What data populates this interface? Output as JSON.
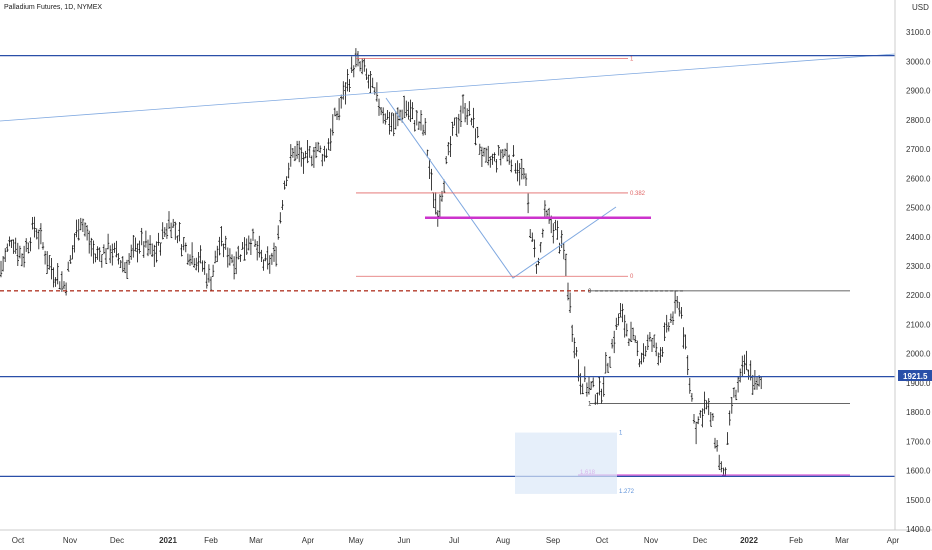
{
  "title": "Palladium Futures, 1D, NYMEX",
  "currency": "USD",
  "last_price": "1921.5",
  "colors": {
    "bars": "#111111",
    "horizontal_line": "#2a4fa8",
    "support_dashed": "#b33a2a",
    "fib_red": "#e06666",
    "fib_magenta": "#cc33cc",
    "trend_line": "#7fa8e0",
    "box_fill": "#dce8f8"
  },
  "chart_data": {
    "type": "ohlc",
    "title": "Palladium Futures, 1D, NYMEX",
    "ylabel": "USD",
    "ylim": [
      1400,
      3200
    ],
    "y_ticks": [
      "1400.0",
      "1500.0",
      "1600.0",
      "1700.0",
      "1800.0",
      "1900.0",
      "2000.0",
      "2100.0",
      "2200.0",
      "2300.0",
      "2400.0",
      "2500.0",
      "2600.0",
      "2700.0",
      "2800.0",
      "2900.0",
      "3000.0",
      "3100.0",
      "3200.0"
    ],
    "x_ticks": [
      {
        "label": "Oct",
        "year": false
      },
      {
        "label": "Nov",
        "year": false
      },
      {
        "label": "Dec",
        "year": false
      },
      {
        "label": "2021",
        "year": true
      },
      {
        "label": "Feb",
        "year": false
      },
      {
        "label": "Mar",
        "year": false
      },
      {
        "label": "Apr",
        "year": false
      },
      {
        "label": "May",
        "year": false
      },
      {
        "label": "Jun",
        "year": false
      },
      {
        "label": "Jul",
        "year": false
      },
      {
        "label": "Aug",
        "year": false
      },
      {
        "label": "Sep",
        "year": false
      },
      {
        "label": "Oct",
        "year": false
      },
      {
        "label": "Nov",
        "year": false
      },
      {
        "label": "Dec",
        "year": false
      },
      {
        "label": "2022",
        "year": true
      },
      {
        "label": "Feb",
        "year": false
      },
      {
        "label": "Mar",
        "year": false
      },
      {
        "label": "Apr",
        "year": false
      }
    ],
    "price_path": [
      [
        0,
        2280
      ],
      [
        12,
        2400
      ],
      [
        22,
        2330
      ],
      [
        35,
        2440
      ],
      [
        50,
        2300
      ],
      [
        65,
        2230
      ],
      [
        80,
        2470
      ],
      [
        95,
        2330
      ],
      [
        110,
        2360
      ],
      [
        125,
        2300
      ],
      [
        140,
        2380
      ],
      [
        155,
        2340
      ],
      [
        170,
        2460
      ],
      [
        185,
        2360
      ],
      [
        200,
        2320
      ],
      [
        210,
        2250
      ],
      [
        220,
        2380
      ],
      [
        235,
        2320
      ],
      [
        250,
        2400
      ],
      [
        265,
        2300
      ],
      [
        275,
        2330
      ],
      [
        285,
        2600
      ],
      [
        295,
        2700
      ],
      [
        305,
        2650
      ],
      [
        315,
        2700
      ],
      [
        325,
        2680
      ],
      [
        335,
        2800
      ],
      [
        345,
        2900
      ],
      [
        355,
        3000
      ],
      [
        365,
        2960
      ],
      [
        375,
        2880
      ],
      [
        385,
        2820
      ],
      [
        395,
        2780
      ],
      [
        405,
        2850
      ],
      [
        415,
        2800
      ],
      [
        425,
        2760
      ],
      [
        432,
        2560
      ],
      [
        438,
        2490
      ],
      [
        445,
        2620
      ],
      [
        455,
        2780
      ],
      [
        465,
        2850
      ],
      [
        475,
        2770
      ],
      [
        485,
        2650
      ],
      [
        495,
        2660
      ],
      [
        505,
        2690
      ],
      [
        515,
        2660
      ],
      [
        525,
        2600
      ],
      [
        532,
        2380
      ],
      [
        538,
        2290
      ],
      [
        545,
        2470
      ],
      [
        555,
        2430
      ],
      [
        565,
        2330
      ],
      [
        572,
        2100
      ],
      [
        580,
        1920
      ],
      [
        590,
        1880
      ],
      [
        600,
        1860
      ],
      [
        610,
        2000
      ],
      [
        620,
        2140
      ],
      [
        630,
        2060
      ],
      [
        640,
        1990
      ],
      [
        650,
        2040
      ],
      [
        660,
        2000
      ],
      [
        670,
        2110
      ],
      [
        680,
        2180
      ],
      [
        688,
        1940
      ],
      [
        696,
        1750
      ],
      [
        705,
        1830
      ],
      [
        712,
        1770
      ],
      [
        718,
        1660
      ],
      [
        724,
        1560
      ],
      [
        732,
        1830
      ],
      [
        740,
        1900
      ],
      [
        745,
        1970
      ],
      [
        750,
        1940
      ],
      [
        756,
        1880
      ],
      [
        762,
        1900
      ]
    ],
    "annotations": {
      "horizontal_lines": [
        3020,
        1921.5,
        1580
      ],
      "support_dashed": 2215,
      "channel_lines": [
        2215,
        1830
      ],
      "fib_red_levels": [
        {
          "label": "1",
          "value": 3010
        },
        {
          "label": "0.382",
          "value": 2550
        },
        {
          "label": "0",
          "value": 2265
        }
      ],
      "fib_magenta_level": 2465,
      "fib_magenta_lower": {
        "label": "1.618",
        "value": 1585
      },
      "right_labels": [
        {
          "label": "0",
          "value": 3020
        },
        {
          "label": "0",
          "value": 1921.5
        },
        {
          "label": "0.",
          "value": 1580
        }
      ],
      "channel_labels": [
        {
          "label": "0",
          "value": 2215
        },
        {
          "label": "1",
          "value": 1830
        }
      ],
      "box": {
        "top": 1730,
        "bottom": 1520,
        "label_top": "1",
        "label_bottom": "1.272"
      }
    }
  }
}
